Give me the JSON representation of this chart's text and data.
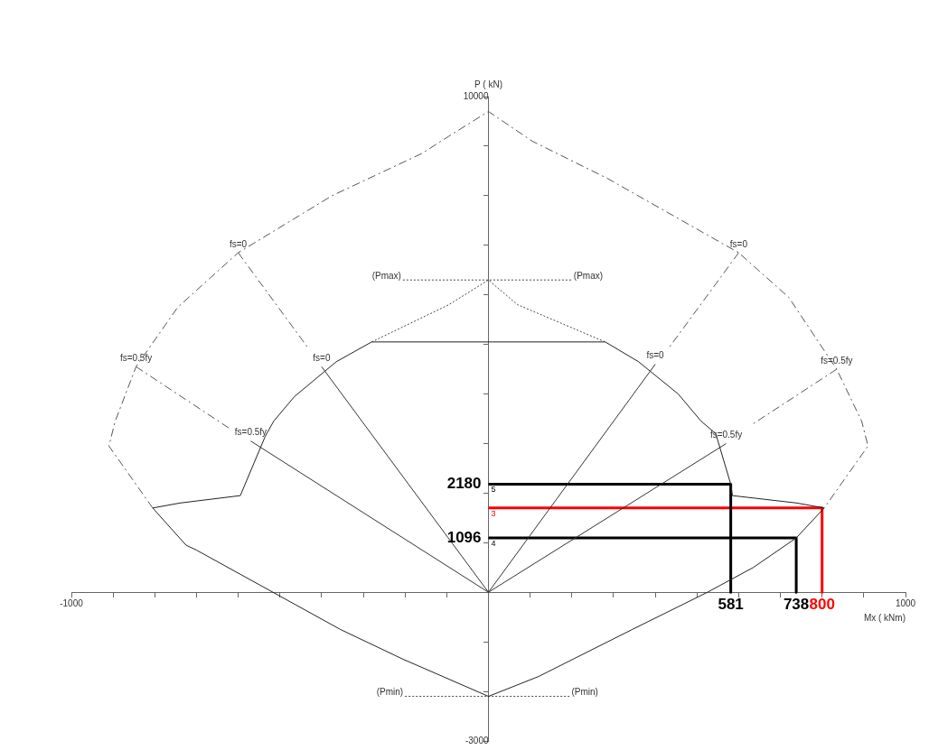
{
  "chart_data": {
    "type": "line",
    "xlabel": "Mx ( kNm)",
    "ylabel": "P ( kN)",
    "xlim": [
      -1000,
      1000
    ],
    "ylim": [
      -3000,
      10000
    ],
    "xticks": [
      {
        "value": -1000,
        "label": "-1000"
      },
      {
        "value": -900,
        "label": null
      },
      {
        "value": -800,
        "label": null
      },
      {
        "value": -700,
        "label": null
      },
      {
        "value": -600,
        "label": null
      },
      {
        "value": -500,
        "label": null
      },
      {
        "value": -400,
        "label": null
      },
      {
        "value": -300,
        "label": null
      },
      {
        "value": -200,
        "label": null
      },
      {
        "value": -100,
        "label": null
      },
      {
        "value": 100,
        "label": null
      },
      {
        "value": 200,
        "label": null
      },
      {
        "value": 300,
        "label": null
      },
      {
        "value": 400,
        "label": null
      },
      {
        "value": 500,
        "label": null
      },
      {
        "value": 600,
        "label": null
      },
      {
        "value": 700,
        "label": null
      },
      {
        "value": 800,
        "label": null
      },
      {
        "value": 900,
        "label": null
      },
      {
        "value": 1000,
        "label": "1000"
      }
    ],
    "yticks": [
      {
        "value": -3000,
        "label": "-3000"
      },
      {
        "value": -2000,
        "label": null
      },
      {
        "value": -1000,
        "label": null
      },
      {
        "value": 1000,
        "label": null
      },
      {
        "value": 2000,
        "label": null
      },
      {
        "value": 3000,
        "label": null
      },
      {
        "value": 4000,
        "label": null
      },
      {
        "value": 5000,
        "label": null
      },
      {
        "value": 6000,
        "label": null
      },
      {
        "value": 7000,
        "label": null
      },
      {
        "value": 8000,
        "label": null
      },
      {
        "value": 9000,
        "label": null
      },
      {
        "value": 10000,
        "label": "10000"
      }
    ],
    "grid": false,
    "legend": false,
    "marker": "none",
    "series": [
      {
        "color": "#555555",
        "line_style": "dashed",
        "x": [
          -805,
          -910,
          -895,
          -845,
          -745,
          -600,
          -375,
          -160,
          -95,
          0,
          105,
          285,
          600,
          720,
          835,
          895,
          910,
          805
        ],
        "values": [
          1700,
          2950,
          3450,
          4550,
          5750,
          6850,
          8000,
          8850,
          9200,
          9700,
          9100,
          8350,
          6850,
          5950,
          4500,
          3450,
          2950,
          1700
        ]
      },
      {
        "color": "#222222",
        "line_style": "solid",
        "x": [
          -280,
          -365,
          -465,
          -515,
          -535,
          -595,
          -740,
          -805,
          -725,
          -700,
          -355,
          -205,
          0
        ],
        "values": [
          5050,
          4650,
          3950,
          3450,
          3150,
          1950,
          1800,
          1700,
          950,
          850,
          -750,
          -1350,
          -2100
        ]
      },
      {
        "color": "#222222",
        "line_style": "solid",
        "x": [
          0,
          120,
          345,
          525,
          635,
          738,
          805,
          740,
          585,
          581,
          545,
          510,
          455,
          360,
          280
        ],
        "values": [
          -2100,
          -1700,
          -750,
          0,
          500,
          1096,
          1700,
          1800,
          1950,
          2180,
          3200,
          3450,
          4000,
          4650,
          5050
        ]
      },
      {
        "color": "#222222",
        "line_style": "solid",
        "x": [
          -280,
          280
        ],
        "values": [
          5050,
          5050
        ]
      },
      {
        "color": "#444444",
        "line_style": "dotted",
        "x": [
          -280,
          -95,
          0,
          70,
          280
        ],
        "values": [
          5050,
          5800,
          6300,
          5800,
          5050
        ]
      },
      {
        "color": "#444444",
        "line_style": "dotted",
        "x": [
          -205,
          200
        ],
        "values": [
          6300,
          6300
        ]
      },
      {
        "color": "#444444",
        "line_style": "dotted",
        "x": [
          -200,
          195
        ],
        "values": [
          -2100,
          -2100
        ]
      },
      {
        "color": "#555555",
        "line_style": "dashed",
        "x": [
          -600,
          -430
        ],
        "values": [
          6850,
          4900
        ]
      },
      {
        "color": "#555555",
        "line_style": "dashed",
        "x": [
          -845,
          -620
        ],
        "values": [
          4550,
          3300
        ]
      },
      {
        "color": "#555555",
        "line_style": "dashed",
        "x": [
          600,
          430
        ],
        "values": [
          6850,
          4900
        ]
      },
      {
        "color": "#555555",
        "line_style": "dashed",
        "x": [
          835,
          635
        ],
        "values": [
          4500,
          3400
        ]
      },
      {
        "color": "#333333",
        "line_style": "solid",
        "x": [
          -400,
          0,
          -570
        ],
        "values": [
          4550,
          0,
          3050
        ]
      },
      {
        "color": "#333333",
        "line_style": "solid",
        "x": [
          400,
          0,
          570
        ],
        "values": [
          4600,
          0,
          3000
        ]
      },
      {
        "color": "#000000",
        "line_style": "solid",
        "x": [
          0,
          581,
          581
        ],
        "values": [
          2180,
          2180,
          0
        ],
        "value_labels": [
          "2180",
          null,
          null
        ]
      },
      {
        "color": "#000000",
        "line_style": "solid",
        "x": [
          0,
          738,
          738
        ],
        "values": [
          1096,
          1096,
          0
        ],
        "value_labels": [
          "1096",
          null,
          null
        ]
      },
      {
        "color": "#ff0000",
        "line_style": "solid",
        "x": [
          0,
          800,
          800
        ],
        "values": [
          1700,
          1700,
          0
        ]
      }
    ],
    "annotations": [
      {
        "text": "fs=0",
        "x": -600,
        "y": 6850
      },
      {
        "text": "fs=0",
        "x": -400,
        "y": 4550
      },
      {
        "text": "fs=0.5fy",
        "x": -845,
        "y": 4550
      },
      {
        "text": "fs=0.5fy",
        "x": -570,
        "y": 3050
      },
      {
        "text": "fs=0",
        "x": 600,
        "y": 6850
      },
      {
        "text": "fs=0",
        "x": 400,
        "y": 4600
      },
      {
        "text": "fs=0.5fy",
        "x": 835,
        "y": 4500
      },
      {
        "text": "fs=0.5fy",
        "x": 570,
        "y": 3000
      },
      {
        "text": "(Pmax)",
        "x": -205,
        "y": 6300
      },
      {
        "text": "(Pmax)",
        "x": 200,
        "y": 6300
      },
      {
        "text": "(Pmin)",
        "x": -200,
        "y": -2100
      },
      {
        "text": "(Pmin)",
        "x": 195,
        "y": -2100
      },
      {
        "text": "5",
        "x": 0,
        "y": 2180
      },
      {
        "text": "3",
        "x": 0,
        "y": 1700
      },
      {
        "text": "4",
        "x": 0,
        "y": 1096
      },
      {
        "text": "581",
        "x": 581,
        "y": 0
      },
      {
        "text": "738",
        "x": 738,
        "y": 0
      },
      {
        "text": "800",
        "x": 800,
        "y": 0
      }
    ]
  }
}
